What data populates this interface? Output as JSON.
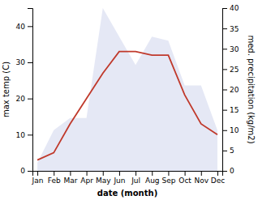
{
  "chart_data": {
    "type": "line",
    "categories": [
      "Jan",
      "Feb",
      "Mar",
      "Apr",
      "May",
      "Jun",
      "Jul",
      "Aug",
      "Sep",
      "Oct",
      "Nov",
      "Dec"
    ],
    "x_label": "date (month)",
    "y_label": "max temp (C)",
    "y2_label": "med. precipitation (kg/m2)",
    "ylim": [
      0,
      45
    ],
    "yticks": [
      0,
      10,
      20,
      30,
      40
    ],
    "y2lim": [
      0,
      40
    ],
    "y2ticks": [
      0,
      5,
      10,
      15,
      20,
      25,
      30,
      35,
      40
    ],
    "series": [
      {
        "type": "area",
        "axis": "y2",
        "color": "#c5cce8",
        "values": [
          2,
          10,
          13,
          13,
          40,
          33,
          26,
          33,
          32,
          21,
          21,
          10
        ]
      },
      {
        "type": "line",
        "color": "#c0392b",
        "values": [
          3,
          5,
          13,
          20,
          27,
          33,
          33,
          32,
          32,
          21,
          13,
          10
        ]
      }
    ]
  }
}
